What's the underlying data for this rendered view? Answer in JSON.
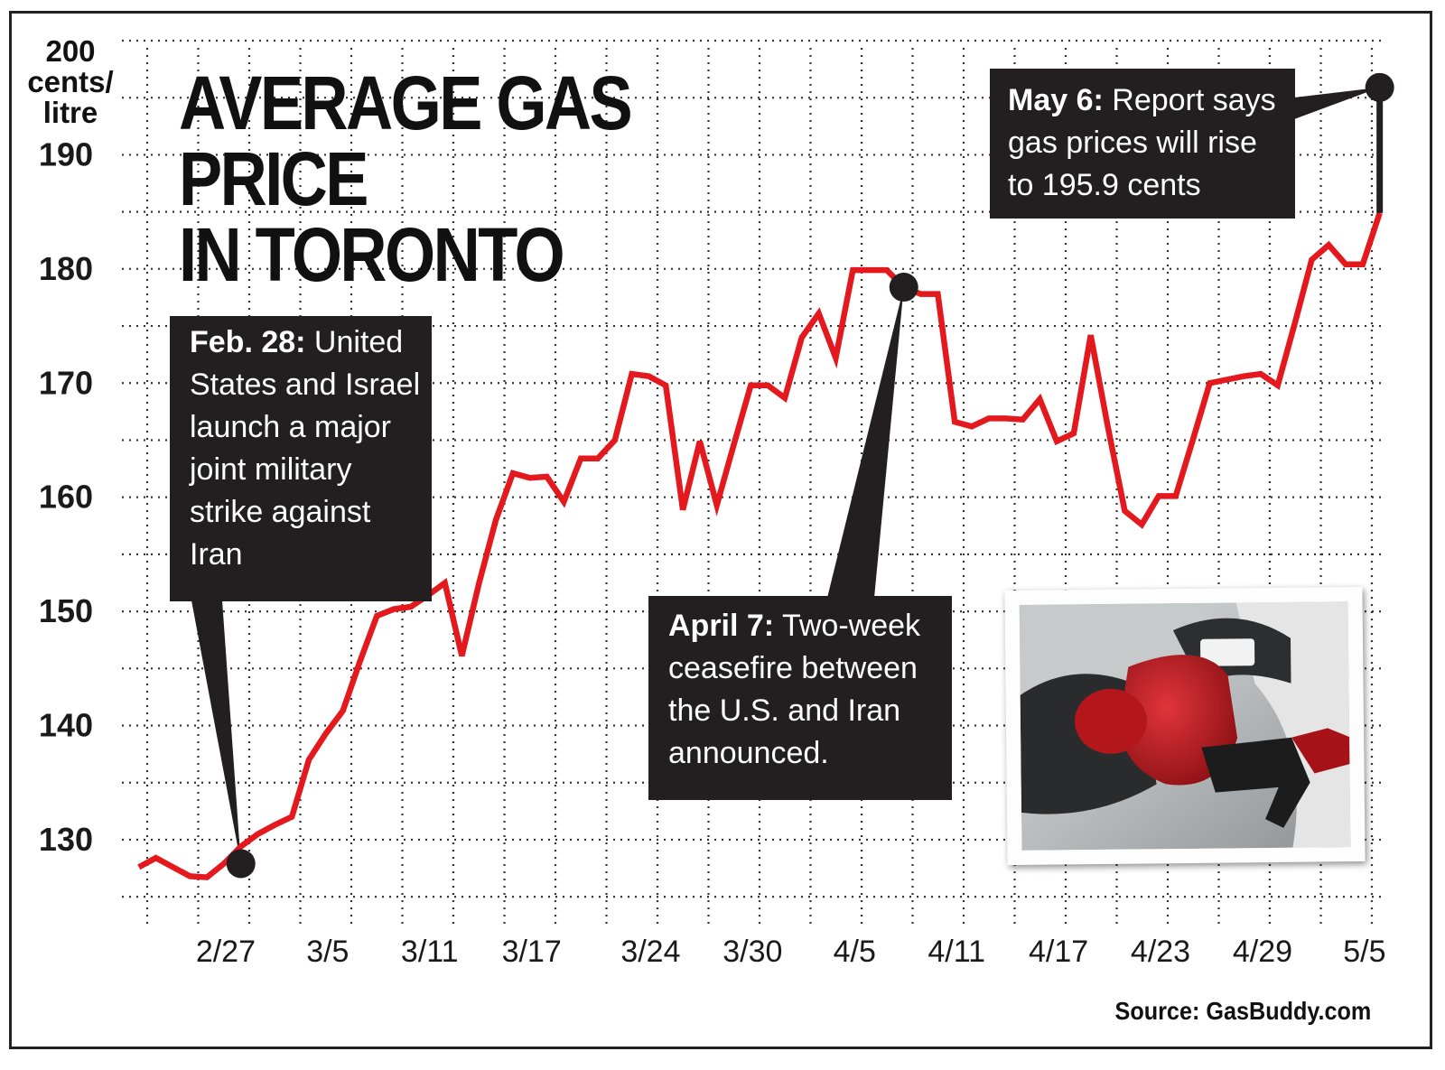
{
  "title_line1": "AVERAGE GAS PRICE",
  "title_line2": "IN TORONTO",
  "y_unit_line1": "200",
  "y_unit_line2": "cents/",
  "y_unit_line3": "litre",
  "source": "Source: GasBuddy.com",
  "colors": {
    "line": "#e3191e",
    "callout_bg": "#231f20",
    "grid": "#333333"
  },
  "callouts": {
    "feb": {
      "bold": "Feb. 28:",
      "text": " United States and Israel launch a major joint military strike against Iran"
    },
    "apr": {
      "bold": "April 7:",
      "text": " Two-week ceasefire between the U.S. and Iran announced."
    },
    "may": {
      "bold": "May 6:",
      "text": " Report says gas prices will rise to 195.9 cents"
    }
  },
  "photo": {
    "icon": "gas-pump-nozzle-photo"
  },
  "chart_data": {
    "type": "line",
    "title": "AVERAGE GAS PRICE IN TORONTO",
    "ylabel": "cents/litre",
    "ylim": [
      122.4,
      200
    ],
    "y_ticks": [
      130,
      140,
      150,
      160,
      170,
      180,
      190,
      200
    ],
    "y_tick_labels": [
      "130",
      "140",
      "150",
      "160",
      "170",
      "180",
      "190",
      ""
    ],
    "x_ticks": [
      "2/27",
      "3/5",
      "3/11",
      "3/17",
      "3/24",
      "3/30",
      "4/5",
      "4/11",
      "4/17",
      "4/23",
      "4/29",
      "5/5"
    ],
    "grid": true,
    "series": [
      {
        "values": [
          {
            "x": "2/22",
            "y": 127.6
          },
          {
            "x": "2/23",
            "y": 128.4
          },
          {
            "x": "2/24",
            "y": 127.6
          },
          {
            "x": "2/25",
            "y": 126.8
          },
          {
            "x": "2/26",
            "y": 126.7
          },
          {
            "x": "2/27",
            "y": 127.9
          },
          {
            "x": "2/28",
            "y": 129.4
          },
          {
            "x": "3/1",
            "y": 130.5
          },
          {
            "x": "3/2",
            "y": 131.3
          },
          {
            "x": "3/3",
            "y": 132.0
          },
          {
            "x": "3/4",
            "y": 137.0
          },
          {
            "x": "3/5",
            "y": 139.3
          },
          {
            "x": "3/6",
            "y": 141.3
          },
          {
            "x": "3/7",
            "y": 145.6
          },
          {
            "x": "3/8",
            "y": 149.6
          },
          {
            "x": "3/9",
            "y": 150.2
          },
          {
            "x": "3/10",
            "y": 150.4
          },
          {
            "x": "3/11",
            "y": 151.4
          },
          {
            "x": "3/12",
            "y": 152.5
          },
          {
            "x": "3/13",
            "y": 146.1
          },
          {
            "x": "3/14",
            "y": 152.4
          },
          {
            "x": "3/15",
            "y": 158.0
          },
          {
            "x": "3/16",
            "y": 162.1
          },
          {
            "x": "3/17",
            "y": 161.7
          },
          {
            "x": "3/18",
            "y": 161.8
          },
          {
            "x": "3/19",
            "y": 159.6
          },
          {
            "x": "3/20",
            "y": 163.4
          },
          {
            "x": "3/21",
            "y": 163.4
          },
          {
            "x": "3/22",
            "y": 165.0
          },
          {
            "x": "3/23",
            "y": 170.8
          },
          {
            "x": "3/24",
            "y": 170.6
          },
          {
            "x": "3/25",
            "y": 169.8
          },
          {
            "x": "3/26",
            "y": 158.9
          },
          {
            "x": "3/27",
            "y": 164.9
          },
          {
            "x": "3/28",
            "y": 159.3
          },
          {
            "x": "3/29",
            "y": 164.6
          },
          {
            "x": "3/30",
            "y": 169.8
          },
          {
            "x": "3/31",
            "y": 169.8
          },
          {
            "x": "4/1",
            "y": 168.7
          },
          {
            "x": "4/2",
            "y": 174.0
          },
          {
            "x": "4/3",
            "y": 176.1
          },
          {
            "x": "4/4",
            "y": 172.2
          },
          {
            "x": "4/5",
            "y": 179.9
          },
          {
            "x": "4/6",
            "y": 179.9
          },
          {
            "x": "4/7",
            "y": 179.9
          },
          {
            "x": "4/8",
            "y": 178.4
          },
          {
            "x": "4/9",
            "y": 177.8
          },
          {
            "x": "4/10",
            "y": 177.8
          },
          {
            "x": "4/11",
            "y": 166.6
          },
          {
            "x": "4/12",
            "y": 166.2
          },
          {
            "x": "4/13",
            "y": 166.9
          },
          {
            "x": "4/14",
            "y": 166.9
          },
          {
            "x": "4/15",
            "y": 166.8
          },
          {
            "x": "4/16",
            "y": 168.6
          },
          {
            "x": "4/17",
            "y": 164.9
          },
          {
            "x": "4/18",
            "y": 165.6
          },
          {
            "x": "4/19",
            "y": 174.2
          },
          {
            "x": "4/20",
            "y": 166.2
          },
          {
            "x": "4/21",
            "y": 158.8
          },
          {
            "x": "4/22",
            "y": 157.6
          },
          {
            "x": "4/23",
            "y": 160.1
          },
          {
            "x": "4/24",
            "y": 160.1
          },
          {
            "x": "4/25",
            "y": 165.0
          },
          {
            "x": "4/26",
            "y": 170.0
          },
          {
            "x": "4/27",
            "y": 170.3
          },
          {
            "x": "4/28",
            "y": 170.6
          },
          {
            "x": "4/29",
            "y": 170.8
          },
          {
            "x": "4/30",
            "y": 169.8
          },
          {
            "x": "5/1",
            "y": 175.2
          },
          {
            "x": "5/2",
            "y": 180.8
          },
          {
            "x": "5/3",
            "y": 182.1
          },
          {
            "x": "5/4",
            "y": 180.4
          },
          {
            "x": "5/5",
            "y": 180.4
          },
          {
            "x": "5/6",
            "y": 184.9
          }
        ]
      }
    ],
    "annotations": [
      {
        "x": "2/28",
        "y": 127.9,
        "label": "Feb. 28"
      },
      {
        "x": "4/8",
        "y": 178.4,
        "label": "April 7"
      },
      {
        "x": "5/6",
        "y": 195.9,
        "label": "May 6"
      }
    ]
  }
}
